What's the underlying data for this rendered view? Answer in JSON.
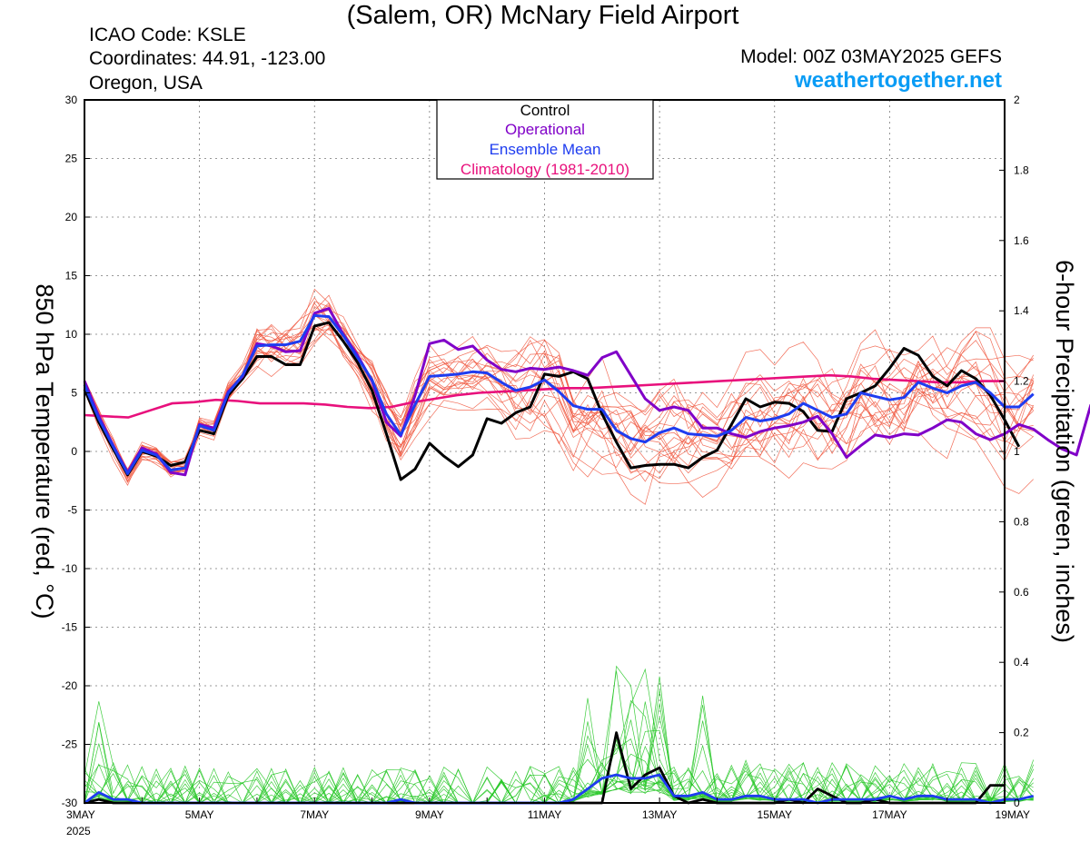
{
  "header": {
    "title": "(Salem, OR) McNary Field Airport",
    "icao": "ICAO Code: KSLE",
    "coords": "Coordinates: 44.91, -123.00",
    "region": "Oregon, USA",
    "model": "Model: 00Z 03MAY2025 GEFS",
    "site": "weathertogether.net"
  },
  "chart_data": {
    "type": "line",
    "title": "(Salem, OR) McNary Field Airport",
    "ylabel_left": "850 hPa Temperature (red, °C)",
    "ylabel_right": "6-hour Precipitation (green, inches)",
    "ylim_left": [
      -30,
      30
    ],
    "ylim_right": [
      0,
      2
    ],
    "yticks_left": [
      "30",
      "25",
      "20",
      "15",
      "10",
      "5",
      "0",
      "-5",
      "-10",
      "-15",
      "-20",
      "-25",
      "-30"
    ],
    "yticks_right": [
      "2",
      "1.8",
      "1.6",
      "1.4",
      "1.2",
      "1",
      "0.8",
      "0.6",
      "0.4",
      "0.2",
      "0"
    ],
    "x_start": "3MAY 2025",
    "x_step_hours": 6,
    "x_tick_labels": [
      {
        "label": "3MAY",
        "day": 0
      },
      {
        "label": "5MAY",
        "day": 2
      },
      {
        "label": "7MAY",
        "day": 4
      },
      {
        "label": "9MAY",
        "day": 6
      },
      {
        "label": "11MAY",
        "day": 8
      },
      {
        "label": "13MAY",
        "day": 10
      },
      {
        "label": "15MAY",
        "day": 12
      },
      {
        "label": "17MAY",
        "day": 14
      },
      {
        "label": "19MAY",
        "day": 16
      }
    ],
    "x_year_label": "2025",
    "grid": true,
    "legend_position": "top-center",
    "legend": [
      {
        "name": "Control",
        "color": "#000000"
      },
      {
        "name": "Operational",
        "color": "#8000c8"
      },
      {
        "name": "Ensemble Mean",
        "color": "#1e3cf0"
      },
      {
        "name": "Climatology (1981-2010)",
        "color": "#e8107c"
      }
    ],
    "temperature_series": [
      {
        "name": "Control",
        "color": "#000000",
        "values": [
          5.3,
          2.5,
          0.2,
          -2,
          0,
          -0.4,
          -1.2,
          -0.9,
          1.8,
          1.5,
          4.8,
          6.2,
          8.1,
          8.1,
          7.4,
          7.4,
          10.7,
          11,
          9.4,
          7.6,
          5.2,
          1.5,
          -2.4,
          -1.5,
          0.7,
          -0.4,
          -1.3,
          -0.3,
          2.8,
          2.4,
          3.3,
          3.8,
          6.6,
          6.4,
          6.8,
          6.2,
          3.2,
          0.8,
          -1.4,
          -1.2,
          -1.1,
          -1.1,
          -1.4,
          -0.5,
          0.1,
          2.3,
          4.5,
          3.8,
          4.2,
          4.1,
          3.4,
          1.8,
          1.7,
          4.5,
          5,
          5.6,
          7.1,
          8.8,
          8.2,
          6.4,
          5.6,
          6.9,
          6.2,
          4.8,
          2.7,
          0.4
        ]
      },
      {
        "name": "Operational",
        "color": "#8000c8",
        "values": [
          6,
          3,
          0.5,
          -1.8,
          0.3,
          -0.2,
          -1.8,
          -2,
          2.3,
          2,
          5.1,
          6.4,
          9.2,
          9,
          8.5,
          8.6,
          11.8,
          12.2,
          10,
          8.2,
          6,
          2.5,
          1.3,
          4.8,
          9.2,
          9.5,
          8.7,
          9,
          7.8,
          7,
          6.8,
          7.1,
          7,
          7.2,
          6.9,
          6.5,
          8,
          8.5,
          6.5,
          4.5,
          3.5,
          3.8,
          3.5,
          2,
          2,
          1.5,
          1.2,
          1.7,
          2,
          2.2,
          2.5,
          3,
          1.5,
          -0.5,
          0.5,
          1.4,
          1.2,
          1.5,
          1.4,
          2,
          2.7,
          2.5,
          1.5,
          1,
          1.5,
          2.3,
          1.9,
          1,
          0.2,
          -0.3,
          4
        ]
      },
      {
        "name": "Ensemble Mean",
        "color": "#1e3cf0",
        "values": [
          5.7,
          2.8,
          0.4,
          -1.9,
          0.1,
          -0.3,
          -1.6,
          -1.4,
          2.2,
          1.8,
          5,
          6.5,
          9,
          9.1,
          9.1,
          9.4,
          11.6,
          11.5,
          9.9,
          8,
          6.1,
          3.2,
          1.4,
          4,
          6.4,
          6.5,
          6.6,
          6.8,
          6.7,
          5.9,
          5.2,
          5.5,
          6.1,
          5.1,
          3.9,
          3.6,
          3.6,
          1.8,
          1.1,
          0.8,
          1.6,
          2,
          1.5,
          1.4,
          1.3,
          1.8,
          2.9,
          2.6,
          2.8,
          3.2,
          4.1,
          3.5,
          2.9,
          3.2,
          5,
          4.7,
          4.4,
          4.6,
          5.9,
          5.4,
          5,
          5.6,
          5.9,
          5,
          3.8,
          3.8,
          4.9
        ]
      },
      {
        "name": "Climatology (1981-2010)",
        "color": "#e8107c",
        "values": [
          3.1,
          3,
          2.9,
          3.5,
          4.1,
          4.2,
          4.4,
          4.3,
          4.1,
          4.1,
          4.1,
          4,
          3.8,
          3.7,
          3.8,
          4.2,
          4.5,
          4.8,
          5,
          5.1,
          5.2,
          5.3,
          5.4,
          5.4,
          5.5,
          5.6,
          5.7,
          5.8,
          5.9,
          6,
          6.1,
          6.2,
          6.3,
          6.4,
          6.5,
          6.4,
          6.2,
          6.1,
          6,
          5.9,
          5.9,
          6,
          6
        ]
      }
    ],
    "precipitation_series": [
      {
        "name": "Control",
        "color": "#000000",
        "values": [
          0,
          0.01,
          0,
          0,
          0,
          0,
          0,
          0,
          0,
          0,
          0,
          0,
          0,
          0,
          0,
          0,
          0,
          0,
          0,
          0,
          0,
          0,
          0,
          0,
          0,
          0,
          0,
          0,
          0,
          0,
          0,
          0,
          0,
          0,
          0,
          0,
          0,
          0.2,
          0.04,
          0.08,
          0.1,
          0.02,
          0,
          0.01,
          0,
          0,
          0,
          0,
          0,
          0.01,
          0,
          0.04,
          0.02,
          0,
          0,
          0.01,
          0,
          0,
          0,
          0,
          0,
          0,
          0,
          0.05,
          0.05
        ]
      },
      {
        "name": "Ensemble Mean",
        "color": "#1e3cf0",
        "values": [
          0,
          0.03,
          0.01,
          0.01,
          0,
          0,
          0,
          0,
          0,
          0,
          0,
          0,
          0,
          0,
          0,
          0,
          0,
          0,
          0,
          0,
          0,
          0,
          0.01,
          0,
          0,
          0,
          0,
          0,
          0,
          0,
          0,
          0,
          0,
          0,
          0.01,
          0.04,
          0.07,
          0.08,
          0.07,
          0.07,
          0.08,
          0.02,
          0.02,
          0.03,
          0.01,
          0.01,
          0.02,
          0.02,
          0.01,
          0.01,
          0.01,
          0,
          0.01,
          0.01,
          0.01,
          0.01,
          0.02,
          0.01,
          0.02,
          0.02,
          0.01,
          0.01,
          0.01,
          0,
          0.01,
          0.01,
          0.02
        ]
      }
    ]
  }
}
